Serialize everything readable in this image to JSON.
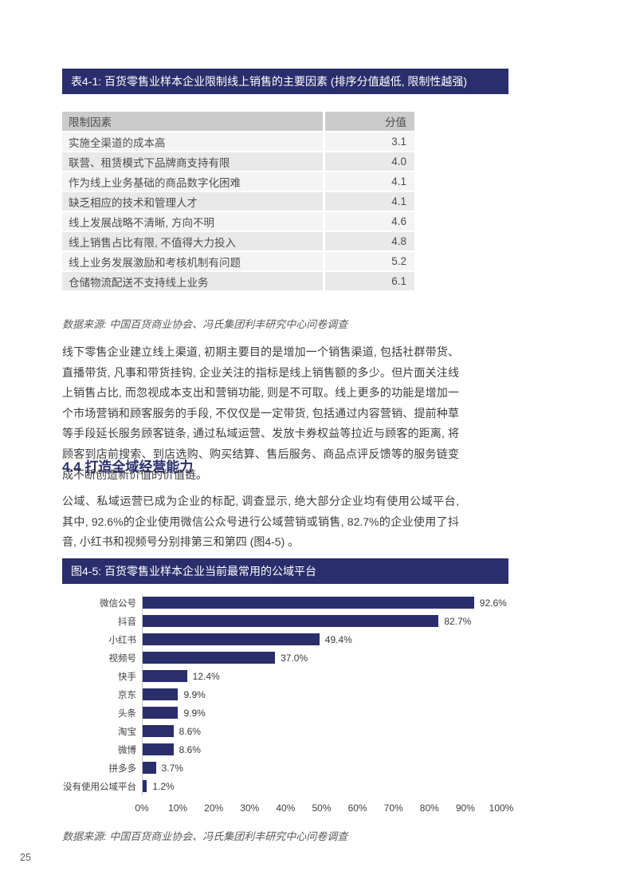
{
  "page": {
    "number": "25"
  },
  "colors": {
    "navy": "#2A2E6C",
    "table_header_bg": "#CBCBCB",
    "row_light": "#F4F4F4",
    "row_dark": "#E9E9E9",
    "source_text": "#595959",
    "body_text": "#3D3D3D",
    "axis_line": "#C6C6C6"
  },
  "table_section": {
    "title": "表4-1: 百货零售业样本企业限制线上销售的主要因素 (排序分值越低, 限制性越强)",
    "columns": [
      "限制因素",
      "分值"
    ],
    "rows": [
      {
        "factor": "实施全渠道的成本高",
        "score": "3.1"
      },
      {
        "factor": "联营、租赁模式下品牌商支持有限",
        "score": "4.0"
      },
      {
        "factor": "作为线上业务基础的商品数字化困难",
        "score": "4.1"
      },
      {
        "factor": "缺乏相应的技术和管理人才",
        "score": "4.1"
      },
      {
        "factor": "线上发展战略不清晰, 方向不明",
        "score": "4.6"
      },
      {
        "factor": "线上销售占比有限, 不值得大力投入",
        "score": "4.8"
      },
      {
        "factor": "线上业务发展激励和考核机制有问题",
        "score": "5.2"
      },
      {
        "factor": "仓储物流配送不支持线上业务",
        "score": "6.1"
      }
    ],
    "source": "数据来源: 中国百货商业协会、冯氏集团利丰研究中心问卷调查"
  },
  "paragraph1": "线下零售企业建立线上渠道, 初期主要目的是增加一个销售渠道, 包括社群带货、直播带货, 凡事和带货挂钩, 企业关注的指标是线上销售额的多少。但片面关注线上销售占比, 而忽视成本支出和营销功能, 则是不可取。线上更多的功能是增加一个市场营销和顾客服务的手段, 不仅仅是一定带货, 包括通过内容营销、提前种草等手段延长服务顾客链条, 通过私域运营、发放卡券权益等拉近与顾客的距离, 将顾客到店前搜索、到店选购、购买结算、售后服务、商品点评反馈等的服务链变成不断创造新价值的价值链。",
  "section_heading": "4.4 打造全域经营能力",
  "paragraph2": "公域、私域运营已成为企业的标配, 调查显示, 绝大部分企业均有使用公域平台, 其中, 92.6%的企业使用微信公众号进行公域营销或销售, 82.7%的企业使用了抖音, 小红书和视频号分别排第三和第四 (图4-5) 。",
  "chart_section": {
    "title": "图4-5: 百货零售业样本企业当前最常用的公域平台",
    "source": "数据来源: 中国百货商业协会、冯氏集团利丰研究中心问卷调查"
  },
  "chart_data": {
    "type": "bar",
    "orientation": "horizontal",
    "title": "图4-5: 百货零售业样本企业当前最常用的公域平台",
    "categories": [
      "微信公号",
      "抖音",
      "小红书",
      "视频号",
      "快手",
      "京东",
      "头条",
      "淘宝",
      "微博",
      "拼多多",
      "没有使用公域平台"
    ],
    "values": [
      92.6,
      82.7,
      49.4,
      37.0,
      12.4,
      9.9,
      9.9,
      8.6,
      8.6,
      3.7,
      1.2
    ],
    "value_labels": [
      "92.6%",
      "82.7%",
      "49.4%",
      "37.0%",
      "12.4%",
      "9.9%",
      "9.9%",
      "8.6%",
      "8.6%",
      "3.7%",
      "1.2%"
    ],
    "x_ticks": [
      "0%",
      "10%",
      "20%",
      "30%",
      "40%",
      "50%",
      "60%",
      "70%",
      "80%",
      "90%",
      "100%"
    ],
    "xlim": [
      0,
      100
    ],
    "bar_color": "#2A2E6C",
    "grid": false,
    "legend": null
  }
}
